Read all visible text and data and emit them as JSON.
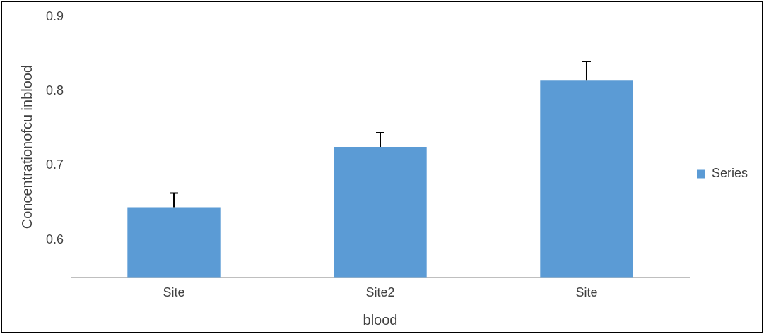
{
  "chart_data": {
    "type": "bar",
    "ylabel": "Concentrationofcu inblood",
    "xlabel": "blood",
    "categories": [
      "Site",
      "Site2",
      "Site"
    ],
    "series": [
      {
        "name": "Series",
        "color": "#5b9bd5",
        "values": [
          0.644,
          0.725,
          0.814
        ],
        "errors": [
          [
            0.644,
            0.663
          ],
          [
            0.725,
            0.744
          ],
          [
            0.814,
            0.84
          ]
        ]
      }
    ],
    "ylim": [
      0.55,
      0.9
    ],
    "yticks": [
      0.6,
      0.7,
      0.8,
      0.9
    ],
    "grid": false,
    "legend": "right"
  }
}
